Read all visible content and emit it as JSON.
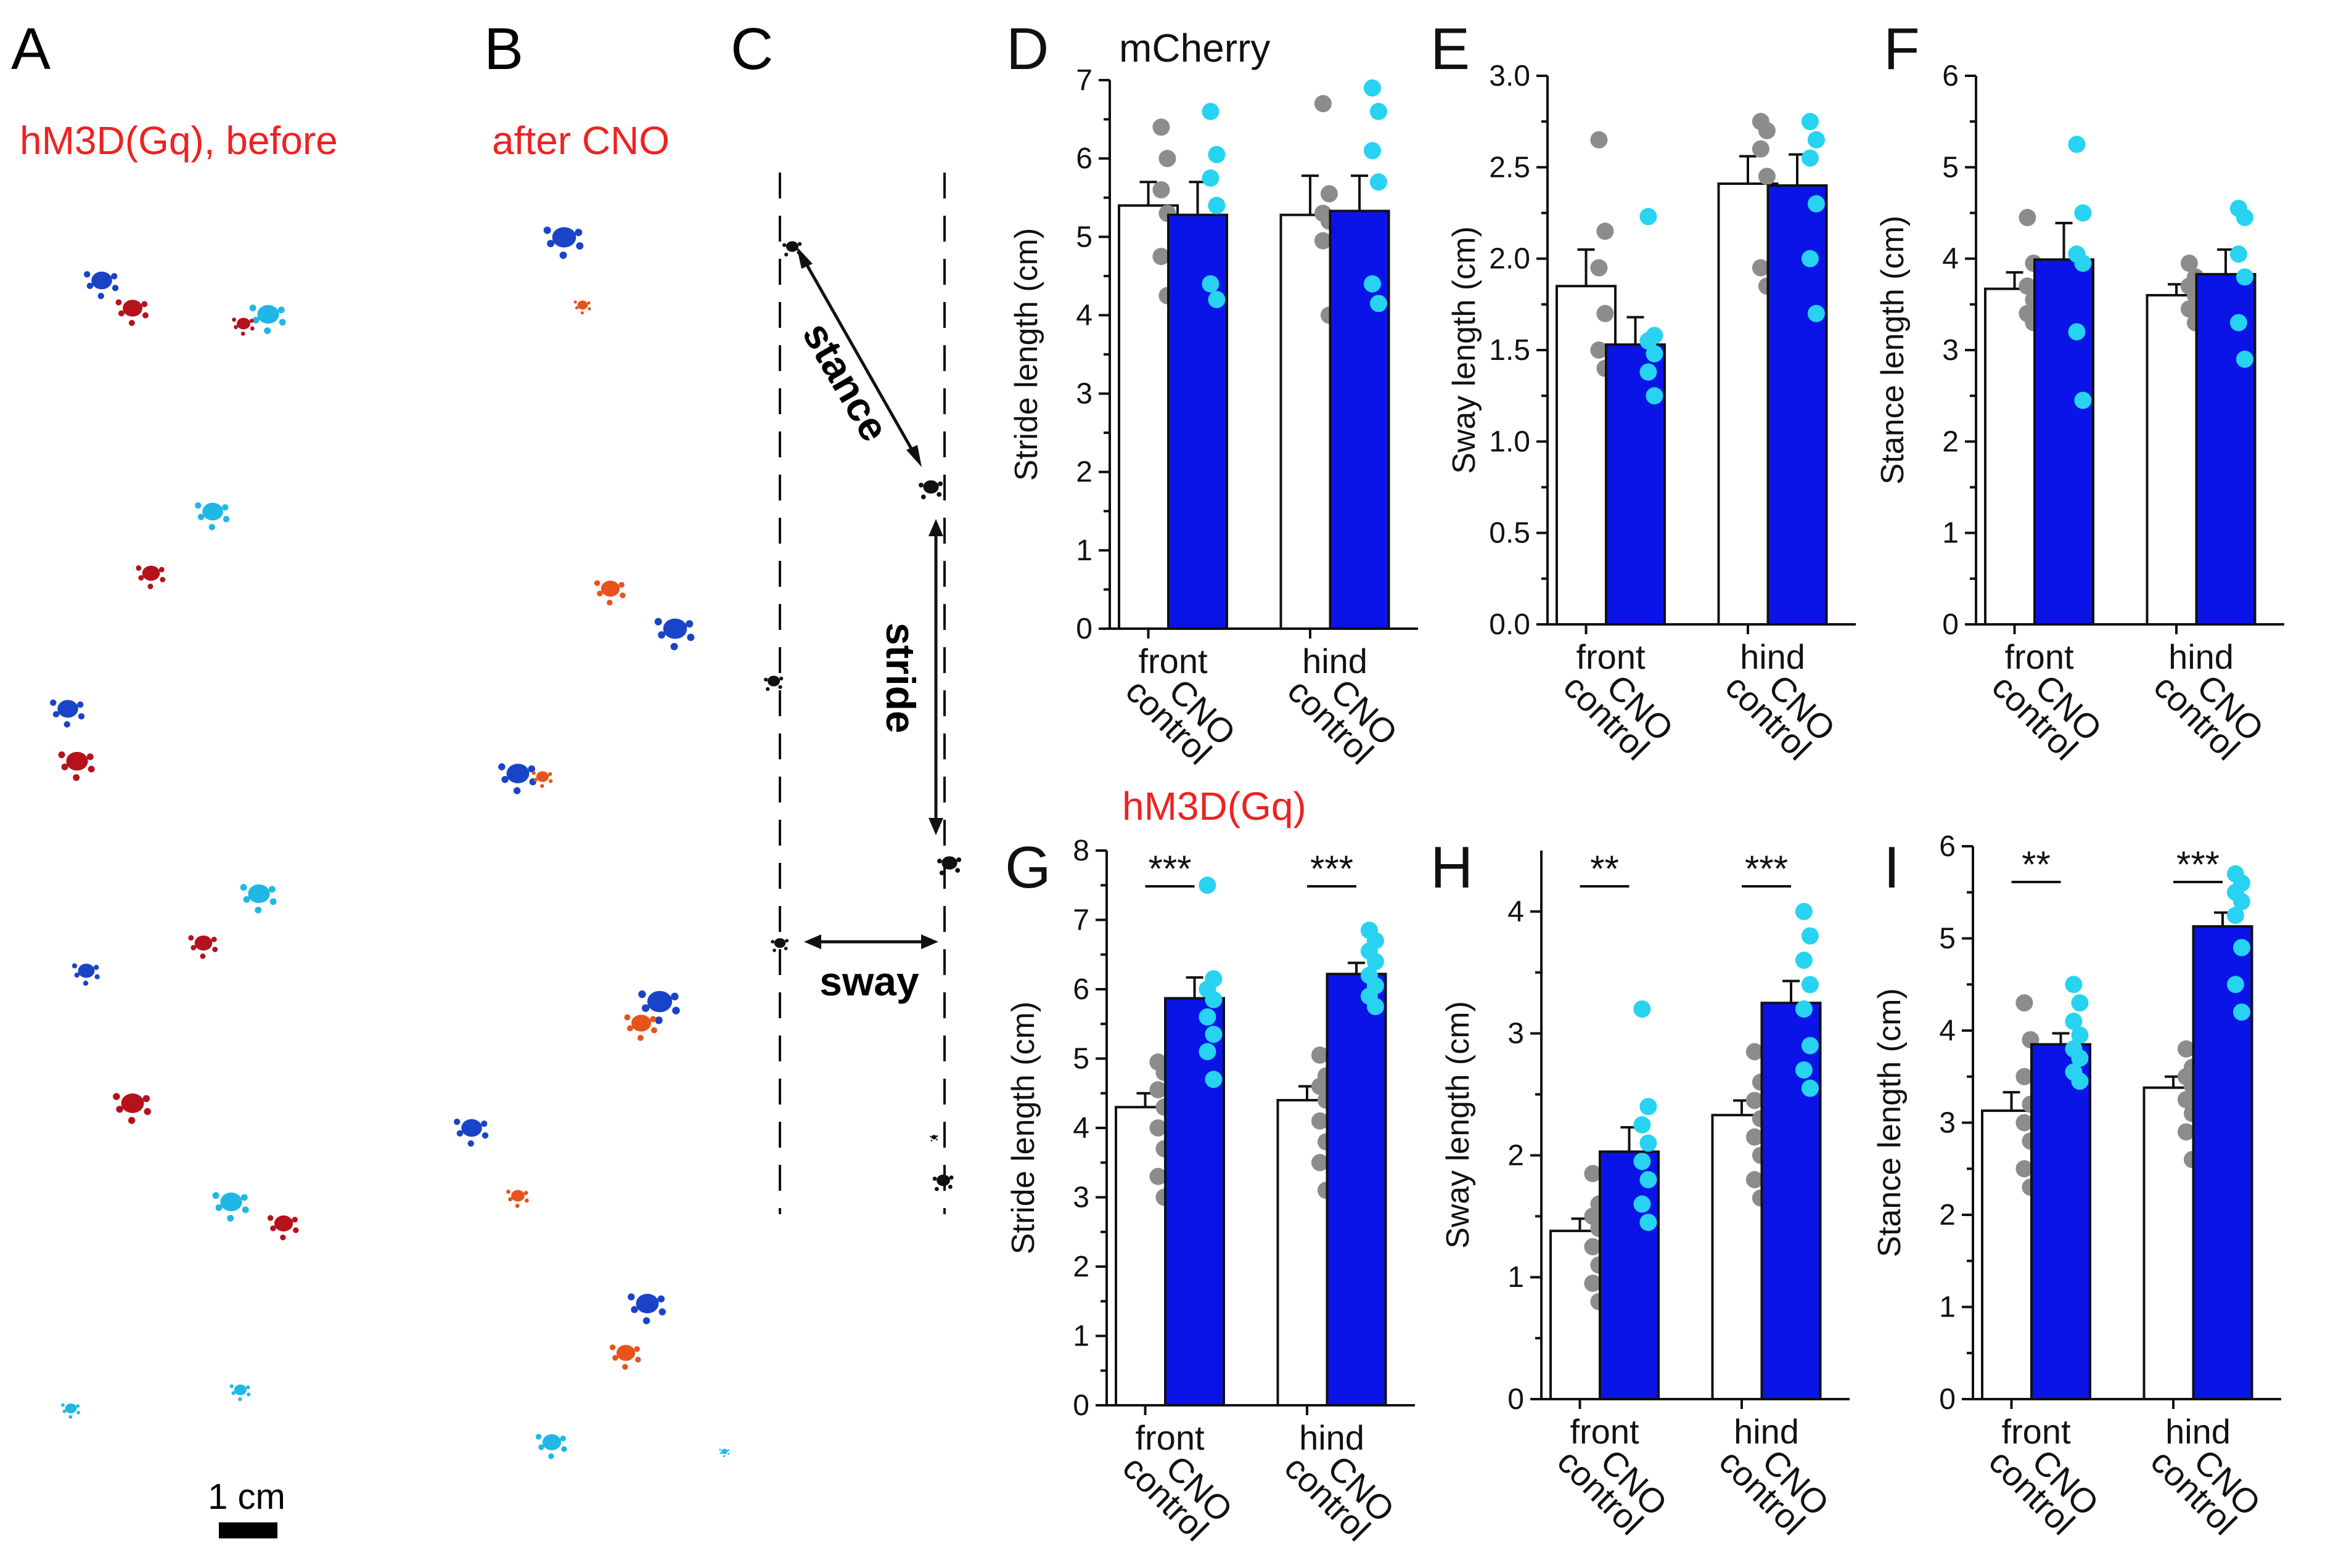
{
  "colors": {
    "control_fill": "#ffffff",
    "cno_fill": "#0a14e6",
    "control_dot": "#8c8c8c",
    "cno_dot": "#27d3f0",
    "title_red": "#ee2222",
    "ink": "#111111",
    "print_red": "#b5121b",
    "print_dark_blue": "#1a44c8",
    "print_light_blue": "#1fb8e6",
    "print_orange": "#e8531c",
    "schematic": "#111111"
  },
  "panels": {
    "A": {
      "letter": "A",
      "title": "hM3D(Gq), before",
      "scalebar": "1 cm"
    },
    "B": {
      "letter": "B",
      "title": "after CNO"
    },
    "C": {
      "letter": "C",
      "labels": {
        "stance": "stance",
        "stride": "stride",
        "sway": "sway"
      }
    }
  },
  "chart_data": [
    {
      "panel": "D",
      "type": "bar",
      "title": "mCherry",
      "title_color": "#111111",
      "ylabel": "Stride length (cm)",
      "ylim": [
        0,
        7
      ],
      "yticks": [
        "0",
        "1",
        "2",
        "3",
        "4",
        "5",
        "6",
        "7"
      ],
      "groups": [
        "front",
        "hind"
      ],
      "conditions": [
        "control",
        "CNO"
      ],
      "series": [
        {
          "name": "control",
          "values": [
            5.4,
            5.28
          ],
          "errors": [
            0.3,
            0.5
          ],
          "points": [
            [
              6.4,
              6.0,
              5.6,
              5.3,
              4.75,
              4.25
            ],
            [
              6.7,
              5.55,
              5.3,
              5.2,
              4.95,
              4.0
            ]
          ]
        },
        {
          "name": "CNO",
          "values": [
            5.28,
            5.33
          ],
          "errors": [
            0.42,
            0.45
          ],
          "points": [
            [
              6.6,
              6.05,
              5.75,
              5.4,
              4.4,
              4.2
            ],
            [
              6.9,
              6.6,
              6.1,
              5.7,
              4.4,
              4.15
            ]
          ]
        }
      ],
      "significance": []
    },
    {
      "panel": "E",
      "type": "bar",
      "title": "",
      "title_color": "#111111",
      "ylabel": "Sway length (cm)",
      "ylim": [
        0,
        3
      ],
      "yticks": [
        "0.0",
        "0.5",
        "1.0",
        "1.5",
        "2.0",
        "2.5",
        "3.0"
      ],
      "groups": [
        "front",
        "hind"
      ],
      "conditions": [
        "control",
        "CNO"
      ],
      "series": [
        {
          "name": "control",
          "values": [
            1.85,
            2.41
          ],
          "errors": [
            0.2,
            0.15
          ],
          "points": [
            [
              2.65,
              2.15,
              1.95,
              1.7,
              1.5,
              1.4
            ],
            [
              2.75,
              2.7,
              2.6,
              2.45,
              1.95,
              1.85
            ]
          ]
        },
        {
          "name": "CNO",
          "values": [
            1.53,
            2.4
          ],
          "errors": [
            0.15,
            0.17
          ],
          "points": [
            [
              2.23,
              1.58,
              1.55,
              1.48,
              1.38,
              1.25
            ],
            [
              2.75,
              2.65,
              2.55,
              2.3,
              2.0,
              1.7
            ]
          ]
        }
      ],
      "significance": []
    },
    {
      "panel": "F",
      "type": "bar",
      "title": "",
      "title_color": "#111111",
      "ylabel": "Stance length (cm)",
      "ylim": [
        0,
        6
      ],
      "yticks": [
        "0",
        "1",
        "2",
        "3",
        "4",
        "5",
        "6"
      ],
      "groups": [
        "front",
        "hind"
      ],
      "conditions": [
        "control",
        "CNO"
      ],
      "series": [
        {
          "name": "control",
          "values": [
            3.67,
            3.6
          ],
          "errors": [
            0.18,
            0.12
          ],
          "points": [
            [
              4.45,
              3.95,
              3.7,
              3.55,
              3.4,
              3.3
            ],
            [
              3.95,
              3.8,
              3.7,
              3.6,
              3.45,
              3.3
            ]
          ]
        },
        {
          "name": "CNO",
          "values": [
            3.99,
            3.83
          ],
          "errors": [
            0.4,
            0.27
          ],
          "points": [
            [
              5.25,
              4.5,
              4.05,
              3.95,
              3.2,
              2.45
            ],
            [
              4.55,
              4.45,
              4.05,
              3.8,
              3.3,
              2.9
            ]
          ]
        }
      ],
      "significance": []
    },
    {
      "panel": "G",
      "type": "bar",
      "title": "hM3D(Gq)",
      "title_color": "#ee2222",
      "ylabel": "Stride length (cm)",
      "ylim": [
        0,
        8
      ],
      "yticks": [
        "0",
        "1",
        "2",
        "3",
        "4",
        "5",
        "6",
        "7",
        "8"
      ],
      "groups": [
        "front",
        "hind"
      ],
      "conditions": [
        "control",
        "CNO"
      ],
      "series": [
        {
          "name": "control",
          "values": [
            4.3,
            4.4
          ],
          "errors": [
            0.2,
            0.2
          ],
          "points": [
            [
              4.95,
              4.8,
              4.55,
              4.3,
              4.0,
              3.7,
              3.3,
              3.0
            ],
            [
              5.05,
              4.75,
              4.6,
              4.4,
              4.1,
              3.8,
              3.5,
              3.1
            ]
          ]
        },
        {
          "name": "CNO",
          "values": [
            5.87,
            6.22
          ],
          "errors": [
            0.3,
            0.16
          ],
          "points": [
            [
              7.5,
              6.15,
              6.0,
              5.85,
              5.6,
              5.35,
              5.1,
              4.7
            ],
            [
              6.85,
              6.7,
              6.55,
              6.4,
              6.2,
              6.05,
              5.9,
              5.75
            ]
          ]
        }
      ],
      "significance": [
        "***",
        "***"
      ]
    },
    {
      "panel": "H",
      "type": "bar",
      "title": "",
      "title_color": "#111111",
      "ylabel": "Sway length (cm)",
      "ylim": [
        0,
        4.5
      ],
      "yticks": [
        "0",
        "1",
        "2",
        "3",
        "4"
      ],
      "groups": [
        "front",
        "hind"
      ],
      "conditions": [
        "control",
        "CNO"
      ],
      "series": [
        {
          "name": "control",
          "values": [
            1.38,
            2.33
          ],
          "errors": [
            0.1,
            0.12
          ],
          "points": [
            [
              1.85,
              1.6,
              1.5,
              1.4,
              1.25,
              1.1,
              0.95,
              0.8
            ],
            [
              2.85,
              2.6,
              2.45,
              2.3,
              2.15,
              2.0,
              1.8,
              1.65
            ]
          ]
        },
        {
          "name": "CNO",
          "values": [
            2.03,
            3.25
          ],
          "errors": [
            0.2,
            0.18
          ],
          "points": [
            [
              3.2,
              2.4,
              2.25,
              2.1,
              1.95,
              1.8,
              1.6,
              1.45
            ],
            [
              4.0,
              3.8,
              3.6,
              3.4,
              3.2,
              2.9,
              2.7,
              2.55
            ]
          ]
        }
      ],
      "significance": [
        "**",
        "***"
      ]
    },
    {
      "panel": "I",
      "type": "bar",
      "title": "",
      "title_color": "#111111",
      "ylabel": "Stance length (cm)",
      "ylim": [
        0,
        6
      ],
      "yticks": [
        "0",
        "1",
        "2",
        "3",
        "4",
        "5",
        "6"
      ],
      "groups": [
        "front",
        "hind"
      ],
      "conditions": [
        "control",
        "CNO"
      ],
      "series": [
        {
          "name": "control",
          "values": [
            3.13,
            3.38
          ],
          "errors": [
            0.2,
            0.12
          ],
          "points": [
            [
              4.3,
              3.9,
              3.5,
              3.2,
              3.0,
              2.8,
              2.5,
              2.3
            ],
            [
              3.8,
              3.6,
              3.5,
              3.4,
              3.25,
              3.1,
              2.9,
              2.6
            ]
          ]
        },
        {
          "name": "CNO",
          "values": [
            3.85,
            5.13
          ],
          "errors": [
            0.12,
            0.15
          ],
          "points": [
            [
              4.5,
              4.3,
              4.1,
              3.95,
              3.8,
              3.7,
              3.55,
              3.45
            ],
            [
              5.7,
              5.6,
              5.5,
              5.4,
              5.25,
              4.9,
              4.5,
              4.2
            ]
          ]
        }
      ],
      "significance": [
        "**",
        "***"
      ]
    }
  ]
}
